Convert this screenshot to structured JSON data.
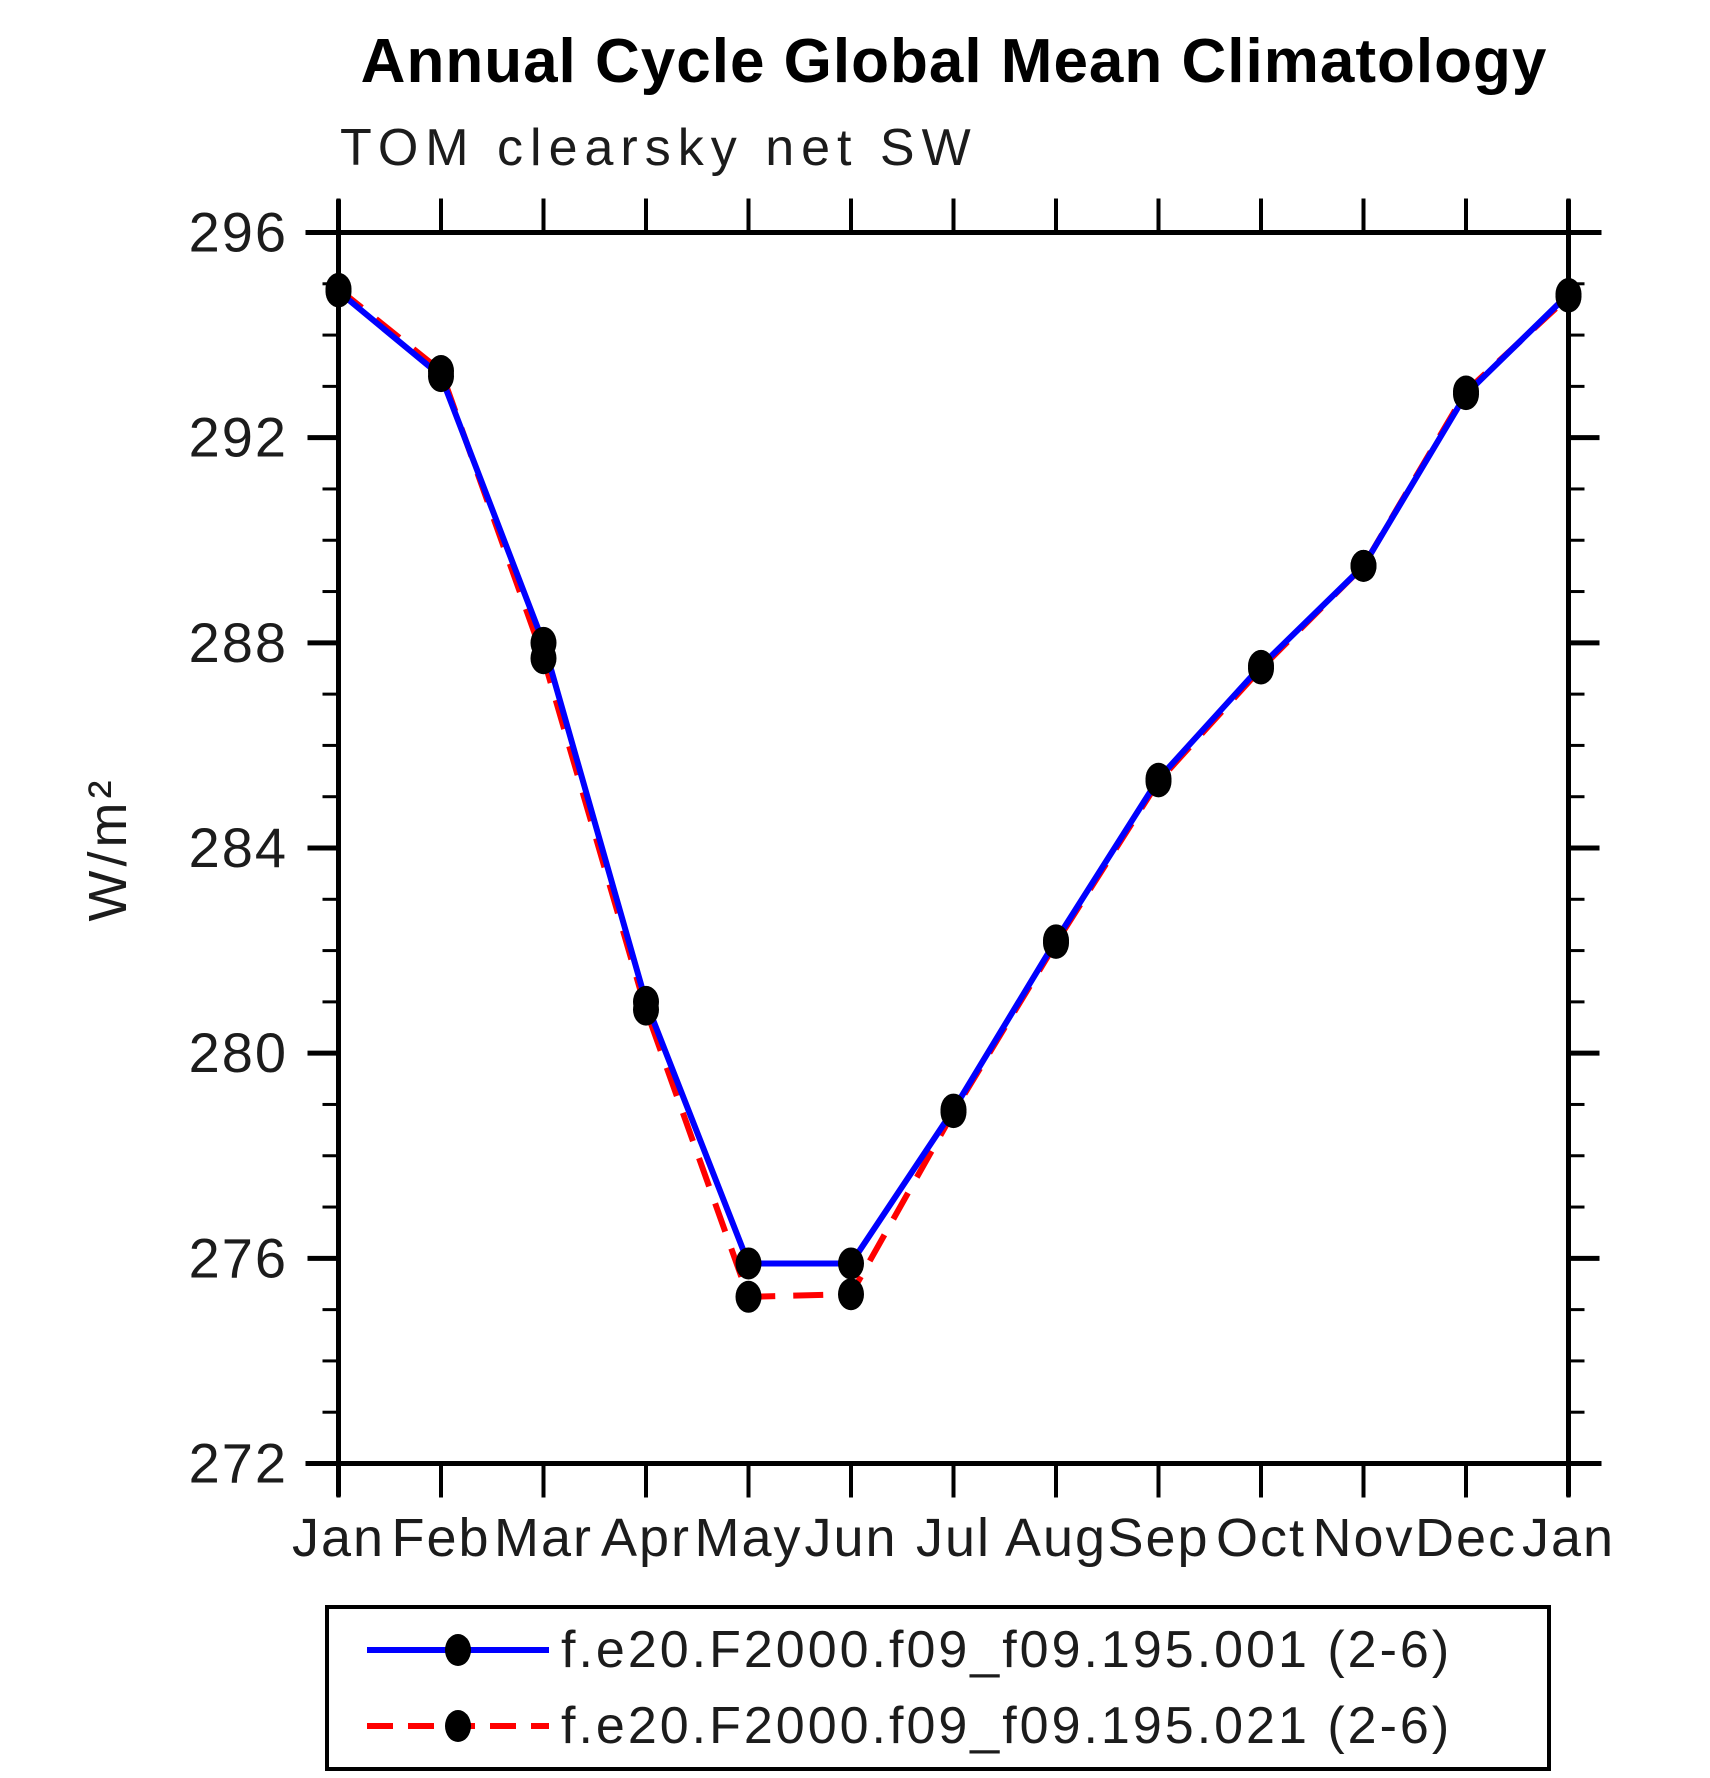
{
  "chart_data": {
    "type": "line",
    "title": "Annual Cycle Global Mean Climatology",
    "subtitle": "TOM clearsky net SW",
    "ylabel": "W/m²",
    "categories": [
      "Jan",
      "Feb",
      "Mar",
      "Apr",
      "May",
      "Jun",
      "Jul",
      "Aug",
      "Sep",
      "Oct",
      "Nov",
      "Dec",
      "Jan"
    ],
    "ylim": [
      272,
      296
    ],
    "y_major_ticks": [
      272,
      276,
      280,
      284,
      288,
      292,
      296
    ],
    "y_minor_tick_step": 1,
    "grid": false,
    "legend_position": "bottom",
    "series": [
      {
        "name": "f.e20.F2000.f09_f09.195.001 (2-6)",
        "color": "#0000ff",
        "style": "solid",
        "marker": "circle",
        "marker_color": "#000000",
        "values": [
          294.85,
          293.2,
          288.0,
          281.0,
          275.9,
          275.9,
          278.9,
          282.2,
          285.35,
          287.55,
          289.5,
          292.85,
          294.8
        ]
      },
      {
        "name": "f.e20.F2000.f09_f09.195.021 (2-6)",
        "color": "#ff0000",
        "style": "dashed",
        "marker": "circle",
        "marker_color": "#000000",
        "values": [
          294.9,
          293.3,
          287.7,
          280.85,
          275.25,
          275.3,
          278.85,
          282.15,
          285.3,
          287.5,
          289.5,
          292.9,
          294.75
        ]
      }
    ],
    "axis_color": "#000000",
    "background_color": "#ffffff"
  }
}
